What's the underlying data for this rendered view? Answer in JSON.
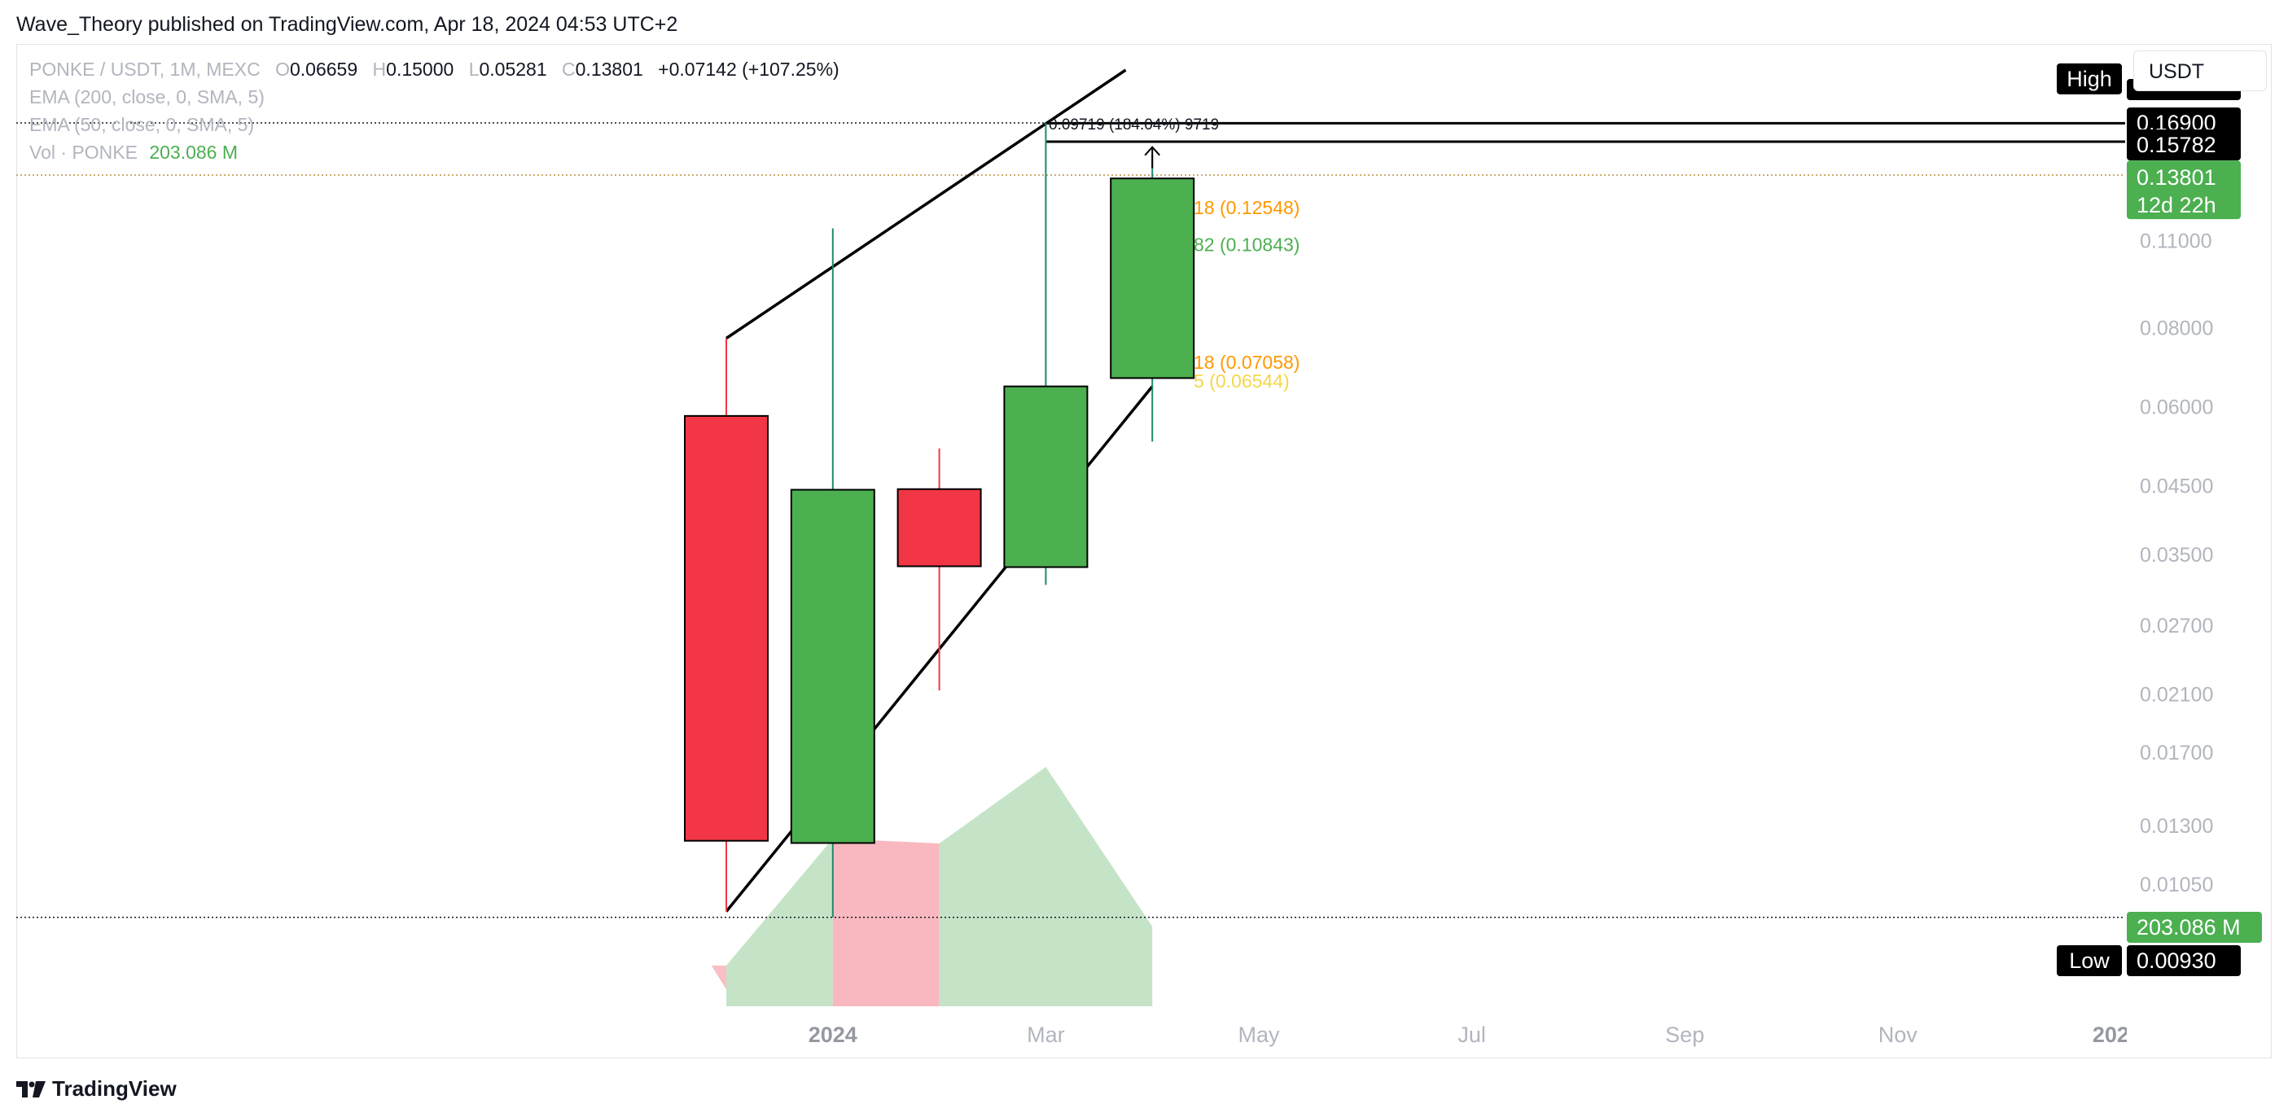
{
  "header": {
    "published": "Wave_Theory published on TradingView.com, Apr 18, 2024 04:53 UTC+2"
  },
  "legend": {
    "symbol": "PONKE / USDT, 1M, MEXC",
    "o_label": "O",
    "o_value": "0.06659",
    "h_label": "H",
    "h_value": "0.15000",
    "l_label": "L",
    "l_value": "0.05281",
    "c_label": "C",
    "c_value": "0.13801",
    "change": "+0.07142 (+107.25%)",
    "ema200": "EMA (200, close, 0, SMA, 5)",
    "ema50": "EMA (50, close, 0, SMA, 5)",
    "vol_label": "Vol · PONKE",
    "vol_value": "203.086 M"
  },
  "price_scale": {
    "unit": "USDT"
  },
  "branding": {
    "name": "TradingView"
  },
  "colors": {
    "up": "#4caf50",
    "down": "#f23645",
    "up_volume": "#c5e4c7",
    "down_volume": "#f9b8bf",
    "label_bg": "#000000",
    "current_price_bg": "#4caf50",
    "fib_orange": "#ff9800",
    "fib_green": "#4caf50",
    "fib_yellow": "#f5d64a"
  },
  "chart_data": {
    "type": "candlestick",
    "scale": "log",
    "xlabel": "",
    "ylabel": "",
    "x_ticks": [
      {
        "label": "2024",
        "bold": true
      },
      {
        "label": "Mar",
        "bold": false
      },
      {
        "label": "May",
        "bold": false
      },
      {
        "label": "Jul",
        "bold": false
      },
      {
        "label": "Sep",
        "bold": false
      },
      {
        "label": "Nov",
        "bold": false
      },
      {
        "label": "202",
        "bold": true
      }
    ],
    "y_ticks": [
      "0.11000",
      "0.08000",
      "0.06000",
      "0.04500",
      "0.03500",
      "0.02700",
      "0.02100",
      "0.01700",
      "0.01300",
      "0.01050"
    ],
    "ylim": [
      0.0078,
      0.205
    ],
    "candles": [
      {
        "date": "2023-12",
        "open": 0.058,
        "high": 0.077,
        "low": 0.0095,
        "close": 0.0123
      },
      {
        "date": "2024-01",
        "open": 0.0122,
        "high": 0.115,
        "low": 0.0093,
        "close": 0.0443
      },
      {
        "date": "2024-02",
        "open": 0.0444,
        "high": 0.0515,
        "low": 0.0213,
        "close": 0.0335
      },
      {
        "date": "2024-03",
        "open": 0.0334,
        "high": 0.169,
        "low": 0.0313,
        "close": 0.0646
      },
      {
        "date": "2024-04",
        "open": 0.06659,
        "high": 0.15,
        "low": 0.05281,
        "close": 0.13801
      }
    ],
    "volume_note": "Vol PONKE 203.086 M",
    "price_labels": [
      {
        "kind": "high",
        "tag": "High",
        "value": "0.16900"
      },
      {
        "kind": "level",
        "value": "0.15782"
      },
      {
        "kind": "current",
        "value": "0.13801",
        "countdown": "12d 22h"
      },
      {
        "kind": "volume",
        "value": "203.086 M"
      },
      {
        "kind": "low",
        "tag": "Low",
        "value": "0.00930"
      }
    ],
    "fib_labels": [
      {
        "text": "18 (0.12548)",
        "color": "orange"
      },
      {
        "text": "82 (0.10843)",
        "color": "green"
      },
      {
        "text": "18 (0.07058)",
        "color": "orange"
      },
      {
        "text": "5 (0.06544)",
        "color": "yellow"
      }
    ],
    "annotation": "0.09719 (184.04%) 9719"
  }
}
